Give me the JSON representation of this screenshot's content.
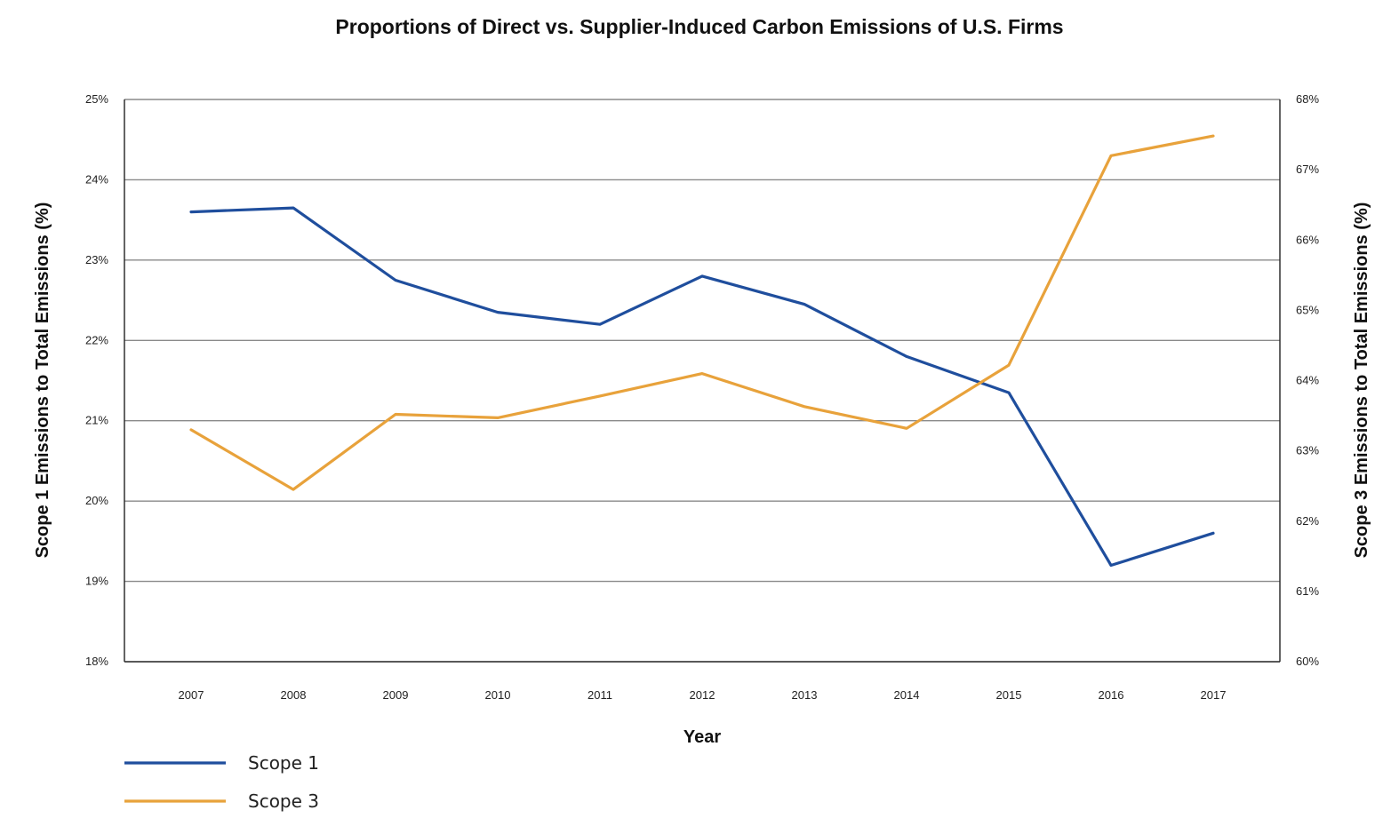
{
  "chart_data": {
    "type": "line",
    "title": "Proportions of Direct vs. Supplier-Induced Carbon Emissions of U.S. Firms",
    "xlabel": "Year",
    "ylabel_left": "Scope 1 Emissions to Total Emissions (%)",
    "ylabel_right": "Scope 3 Emissions to Total Emissions (%)",
    "categories": [
      "2007",
      "2008",
      "2009",
      "2010",
      "2011",
      "2012",
      "2013",
      "2014",
      "2015",
      "2016",
      "2017"
    ],
    "ylim_left": [
      18,
      25
    ],
    "ylim_right": [
      60,
      68
    ],
    "yticks_left": [
      "18%",
      "19%",
      "20%",
      "21%",
      "22%",
      "23%",
      "24%",
      "25%"
    ],
    "yticks_right": [
      "60%",
      "61%",
      "62%",
      "63%",
      "64%",
      "65%",
      "66%",
      "67%",
      "68%"
    ],
    "grid": true,
    "legend_position": "bottom-left",
    "series": [
      {
        "name": "Scope 1",
        "axis": "left",
        "color": "#1f4e9d",
        "values": [
          23.6,
          23.65,
          22.75,
          22.35,
          22.2,
          22.8,
          22.45,
          21.8,
          21.35,
          19.2,
          19.6
        ]
      },
      {
        "name": "Scope 3",
        "axis": "right",
        "color": "#e8a23b",
        "values": [
          63.3,
          62.45,
          63.52,
          63.47,
          63.78,
          64.1,
          63.63,
          63.32,
          64.22,
          67.2,
          67.48
        ]
      }
    ]
  }
}
